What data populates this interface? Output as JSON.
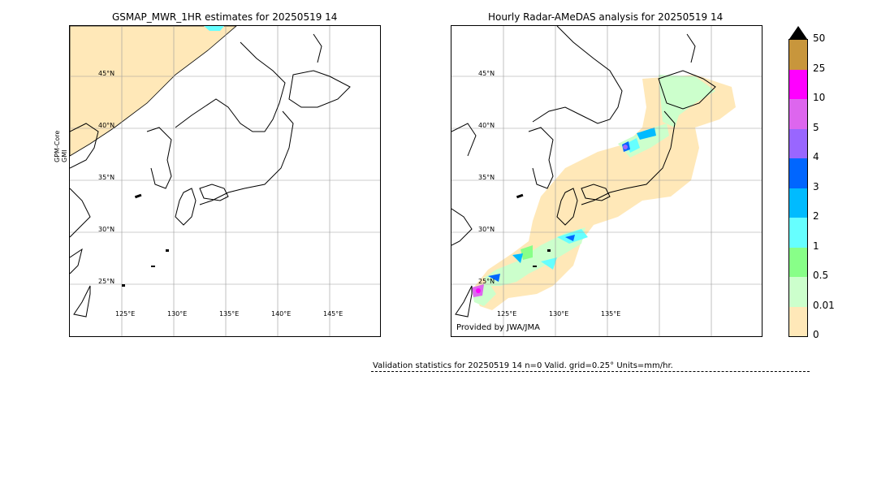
{
  "left_panel": {
    "title": "GSMAP_MWR_1HR estimates for 20250519 14",
    "side_label_line1": "GPM-Core",
    "side_label_line2": "GMI",
    "lat_labels": [
      "45°N",
      "40°N",
      "35°N",
      "30°N",
      "25°N"
    ],
    "lon_labels": [
      "125°E",
      "130°E",
      "135°E",
      "140°E",
      "145°E"
    ]
  },
  "right_panel": {
    "title": "Hourly Radar-AMeDAS analysis for 20250519 14",
    "lat_labels": [
      "45°N",
      "40°N",
      "35°N",
      "30°N",
      "25°N"
    ],
    "lon_labels": [
      "125°E",
      "130°E",
      "135°E"
    ],
    "credit": "Provided by JWA/JMA"
  },
  "colorbar": {
    "ticks": [
      "50",
      "25",
      "10",
      "5",
      "4",
      "3",
      "2",
      "1",
      "0.5",
      "0.01",
      "0"
    ],
    "colors": [
      "#c8963c",
      "#ff00ff",
      "#dd66ee",
      "#9966ff",
      "#0066ff",
      "#00bbff",
      "#66ffff",
      "#88ff88",
      "#ccffcc",
      "#ffe8b8"
    ],
    "extend_color": "#000000"
  },
  "stats": {
    "text": "Validation statistics for 20250519 14  n=0 Valid. grid=0.25° Units=mm/hr."
  }
}
